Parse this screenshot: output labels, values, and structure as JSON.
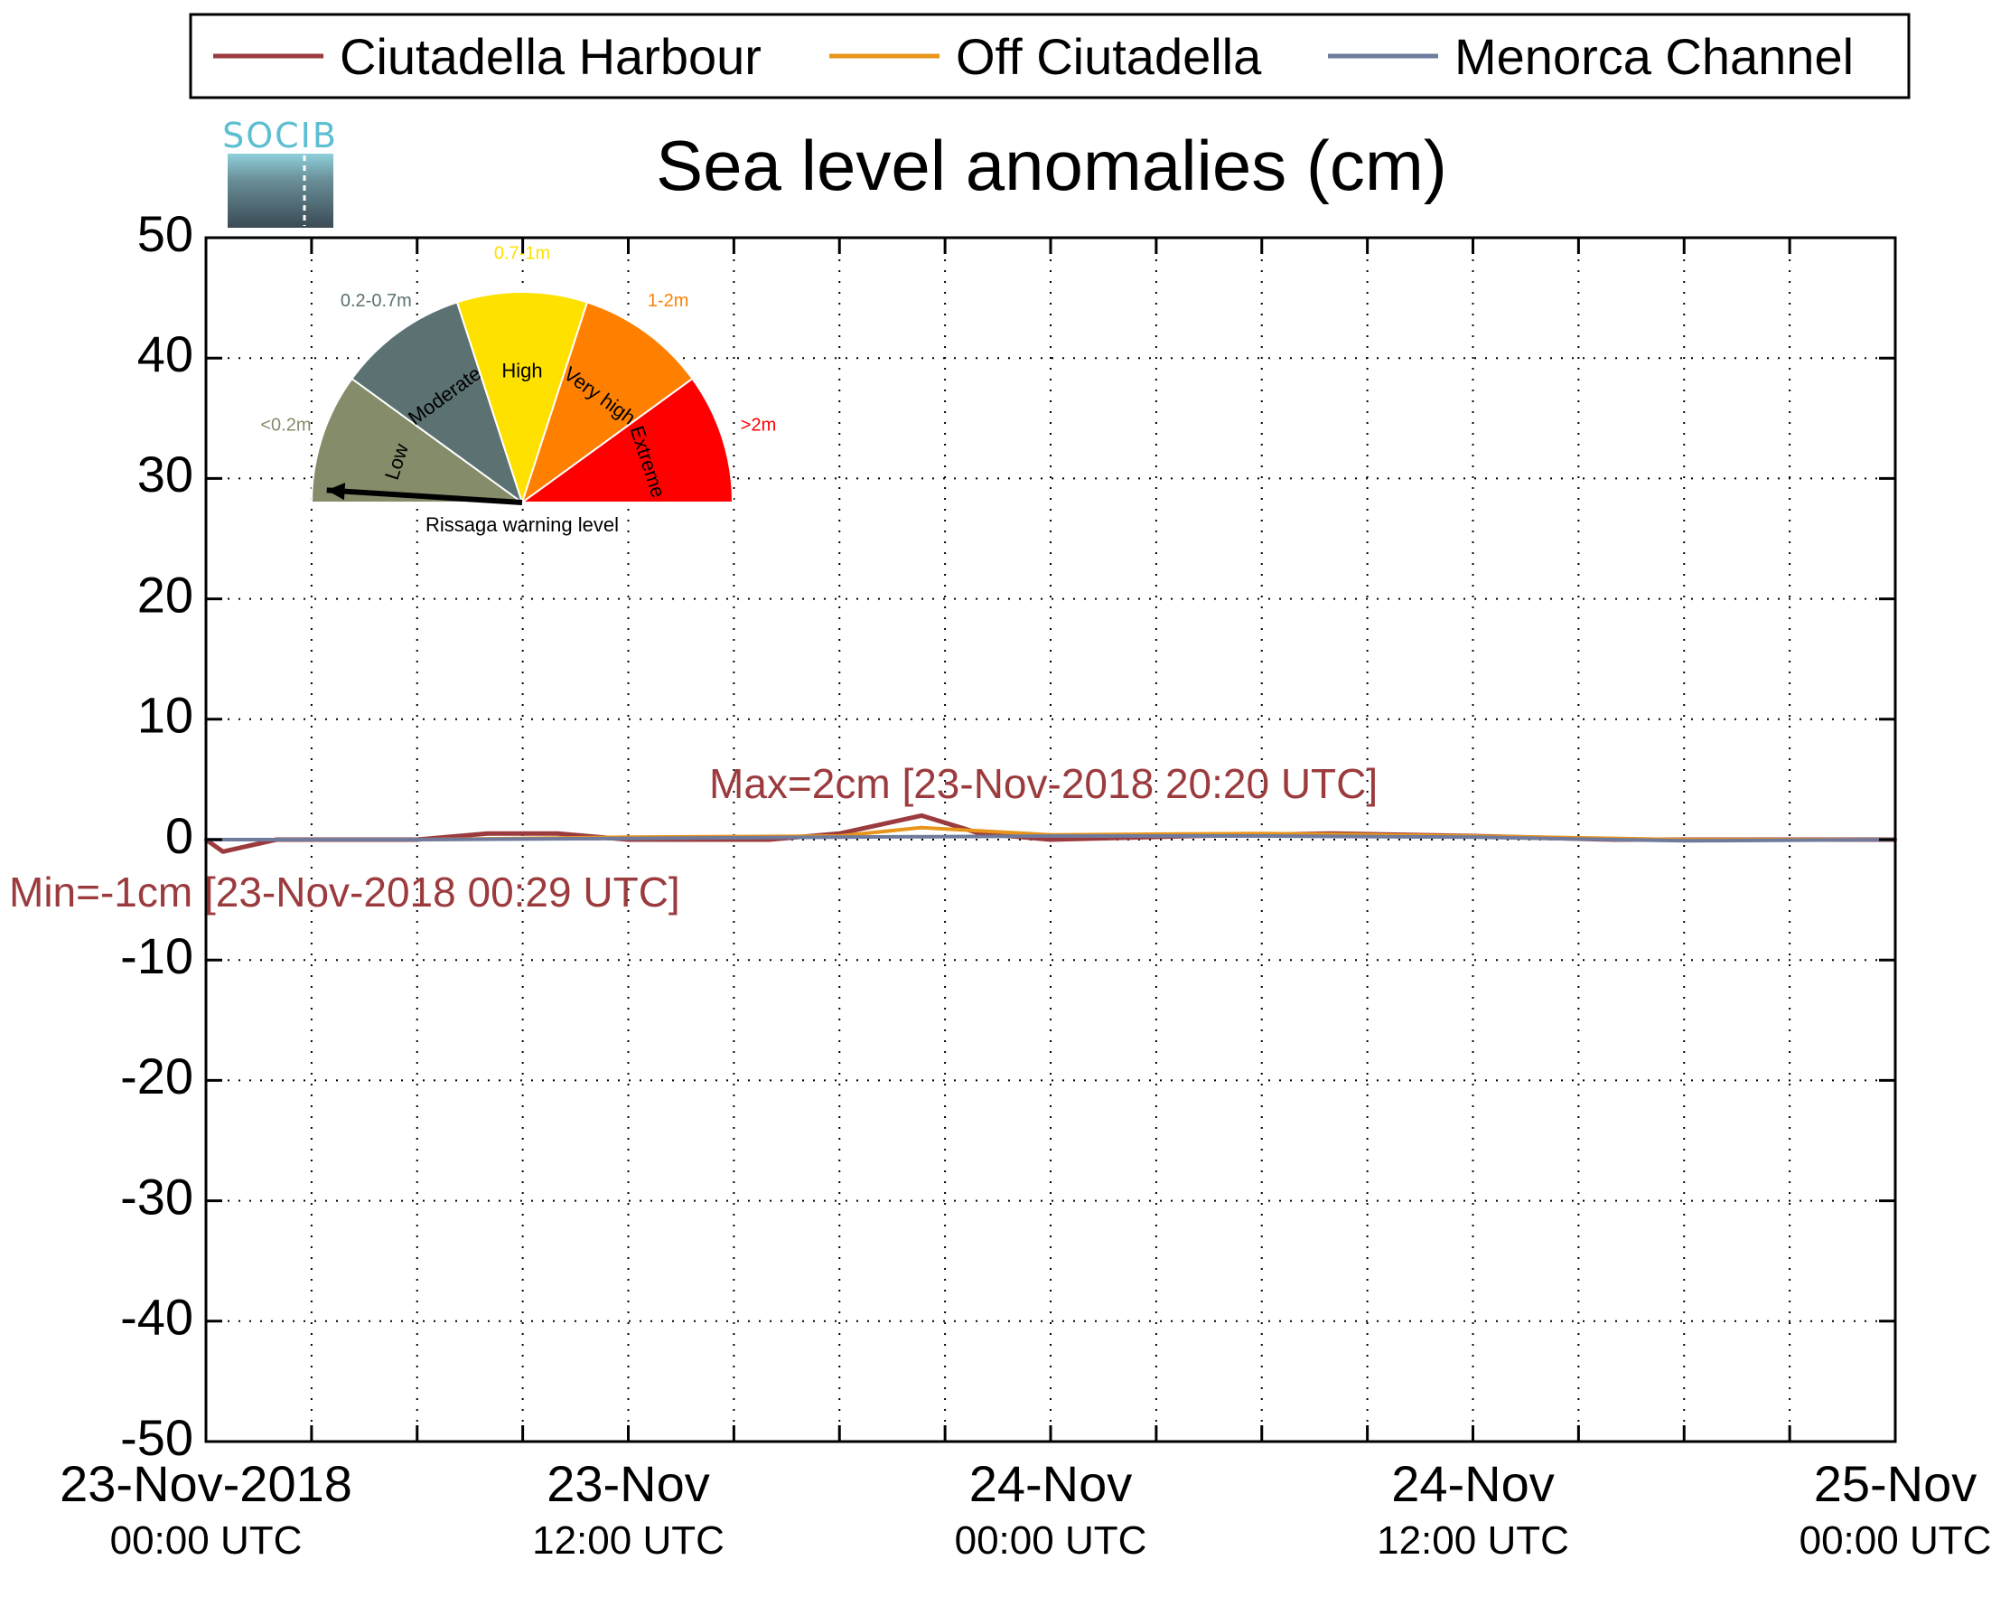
{
  "chart_data": {
    "type": "line",
    "title": "Sea level anomalies (cm)",
    "xlabel": "",
    "ylabel": "",
    "ylim": [
      -50,
      50
    ],
    "yticks": [
      50,
      40,
      30,
      20,
      10,
      0,
      -10,
      -20,
      -30,
      -40,
      -50
    ],
    "xlim": [
      "2018-11-23 00:00",
      "2018-11-25 00:00"
    ],
    "xtick_labels": [
      {
        "x": "2018-11-23 00:00",
        "line1": "23-Nov-2018",
        "line2": "00:00 UTC"
      },
      {
        "x": "2018-11-23 12:00",
        "line1": "23-Nov",
        "line2": "12:00 UTC"
      },
      {
        "x": "2018-11-24 00:00",
        "line1": "24-Nov",
        "line2": "00:00 UTC"
      },
      {
        "x": "2018-11-24 12:00",
        "line1": "24-Nov",
        "line2": "12:00 UTC"
      },
      {
        "x": "2018-11-25 00:00",
        "line1": "25-Nov",
        "line2": "00:00 UTC"
      }
    ],
    "grid": true,
    "legend_position": "top",
    "series": [
      {
        "name": "Ciutadella Harbour",
        "color": "#9b3b3e",
        "x": [
          "2018-11-23 00:00",
          "2018-11-23 00:29",
          "2018-11-23 02:00",
          "2018-11-23 04:00",
          "2018-11-23 06:00",
          "2018-11-23 08:00",
          "2018-11-23 10:00",
          "2018-11-23 12:00",
          "2018-11-23 14:00",
          "2018-11-23 16:00",
          "2018-11-23 18:00",
          "2018-11-23 20:20",
          "2018-11-23 22:00",
          "2018-11-24 00:00",
          "2018-11-24 04:00",
          "2018-11-24 08:00",
          "2018-11-24 12:00",
          "2018-11-24 16:00",
          "2018-11-24 20:00",
          "2018-11-25 00:00"
        ],
        "values": [
          0,
          -1,
          0,
          0,
          0,
          0.5,
          0.5,
          0,
          0,
          0,
          0.5,
          2,
          0.5,
          0,
          0.3,
          0.5,
          0.3,
          0,
          0,
          0
        ]
      },
      {
        "name": "Off Ciutadella",
        "color": "#e8951c",
        "x": [
          "2018-11-23 00:00",
          "2018-11-23 06:00",
          "2018-11-23 12:00",
          "2018-11-23 18:00",
          "2018-11-23 20:20",
          "2018-11-24 00:00",
          "2018-11-24 06:00",
          "2018-11-24 12:00",
          "2018-11-24 18:00",
          "2018-11-25 00:00"
        ],
        "values": [
          0,
          0,
          0.2,
          0.3,
          1,
          0.4,
          0.5,
          0.3,
          0,
          0
        ]
      },
      {
        "name": "Menorca Channel",
        "color": "#6f7a9c",
        "x": [
          "2018-11-23 00:00",
          "2018-11-23 06:00",
          "2018-11-23 12:00",
          "2018-11-23 18:00",
          "2018-11-24 00:00",
          "2018-11-24 06:00",
          "2018-11-24 12:00",
          "2018-11-24 18:00",
          "2018-11-25 00:00"
        ],
        "values": [
          0,
          0,
          0.1,
          0.2,
          0.3,
          0.3,
          0.2,
          -0.1,
          0
        ]
      }
    ],
    "annotations": {
      "max": {
        "text": "Max=2cm [23-Nov-2018 20:20 UTC]",
        "x": "2018-11-23 20:20",
        "y": 2
      },
      "min": {
        "text": "Min=-1cm [23-Nov-2018 00:29 UTC]",
        "x": "2018-11-23 00:29",
        "y": -1
      }
    }
  },
  "logo": {
    "text": "SOCIB"
  },
  "gauge": {
    "caption": "Rissaga warning level",
    "level": "Low",
    "sectors": [
      {
        "name": "Low",
        "range": "<0.2m",
        "color": "#858c6a",
        "range_color": "#858c6a"
      },
      {
        "name": "Moderate",
        "range": "0.2-0.7m",
        "color": "#5b7172",
        "range_color": "#5b7172"
      },
      {
        "name": "High",
        "range": "0.7-1m",
        "color": "#ffe100",
        "range_color": "#ffe100"
      },
      {
        "name": "Very high",
        "range": "1-2m",
        "color": "#ff8000",
        "range_color": "#ff8000"
      },
      {
        "name": "Extreme",
        "range": ">2m",
        "color": "#ff0000",
        "range_color": "#ff0000"
      }
    ]
  }
}
